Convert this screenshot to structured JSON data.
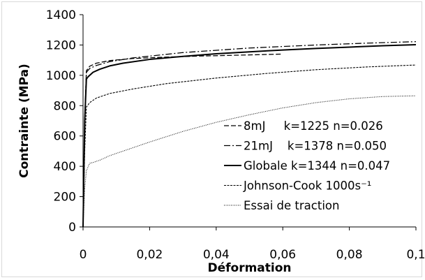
{
  "chart_data": {
    "type": "line",
    "xlabel": "Déformation",
    "ylabel": "Contrainte  (MPa)",
    "xlim": [
      0,
      0.1
    ],
    "ylim": [
      0,
      1400
    ],
    "xticks": [
      0,
      0.02,
      0.04,
      0.06,
      0.08,
      0.1
    ],
    "xtick_labels": [
      "0",
      "0,02",
      "0,04",
      "0,06",
      "0,08",
      "0,1"
    ],
    "yticks": [
      0,
      200,
      400,
      600,
      800,
      1000,
      1200,
      1400
    ],
    "ytick_labels": [
      "0",
      "200",
      "400",
      "600",
      "800",
      "1000",
      "1200",
      "1400"
    ],
    "grid": false,
    "legend_position": "bottom-right",
    "series": [
      {
        "name": "8mJ     k=1225 n=0.026",
        "style": "dashed",
        "color": "#000000",
        "x": [
          0.0,
          0.0005,
          0.001,
          0.002,
          0.004,
          0.008,
          0.015,
          0.025,
          0.035,
          0.045,
          0.06
        ],
        "y": [
          0,
          700,
          1030,
          1060,
          1080,
          1097,
          1111,
          1120,
          1127,
          1132,
          1140
        ]
      },
      {
        "name": "21mJ    k=1378 n=0.050",
        "style": "dashdot",
        "color": "#000000",
        "x": [
          0.0,
          0.0005,
          0.001,
          0.002,
          0.004,
          0.008,
          0.015,
          0.03,
          0.05,
          0.07,
          0.085,
          0.1
        ],
        "y": [
          0,
          700,
          1020,
          1045,
          1065,
          1090,
          1115,
          1150,
          1180,
          1200,
          1212,
          1222
        ]
      },
      {
        "name": "Globale k=1344 n=0.047",
        "style": "solid",
        "color": "#000000",
        "x": [
          0.0,
          0.0005,
          0.001,
          0.0015,
          0.003,
          0.005,
          0.008,
          0.012,
          0.02,
          0.03,
          0.04,
          0.05,
          0.06,
          0.07,
          0.08,
          0.09,
          0.1
        ],
        "y": [
          0,
          700,
          975,
          990,
          1020,
          1040,
          1062,
          1080,
          1105,
          1125,
          1142,
          1155,
          1167,
          1177,
          1186,
          1195,
          1202
        ]
      },
      {
        "name": "Johnson-Cook 1000s⁻¹",
        "style": "densedash",
        "color": "#000000",
        "x": [
          0.0,
          0.0005,
          0.001,
          0.002,
          0.004,
          0.008,
          0.015,
          0.025,
          0.04,
          0.055,
          0.07,
          0.085,
          0.1
        ],
        "y": [
          0,
          500,
          790,
          820,
          850,
          880,
          910,
          945,
          982,
          1012,
          1037,
          1055,
          1068
        ]
      },
      {
        "name": "Essai de traction",
        "style": "dotted",
        "color": "#000000",
        "x": [
          0.0,
          0.0005,
          0.001,
          0.002,
          0.003,
          0.005,
          0.008,
          0.012,
          0.02,
          0.03,
          0.04,
          0.05,
          0.06,
          0.07,
          0.08,
          0.09,
          0.1
        ],
        "y": [
          0,
          250,
          370,
          420,
          425,
          440,
          470,
          500,
          560,
          630,
          690,
          740,
          785,
          820,
          845,
          860,
          865
        ]
      }
    ]
  }
}
